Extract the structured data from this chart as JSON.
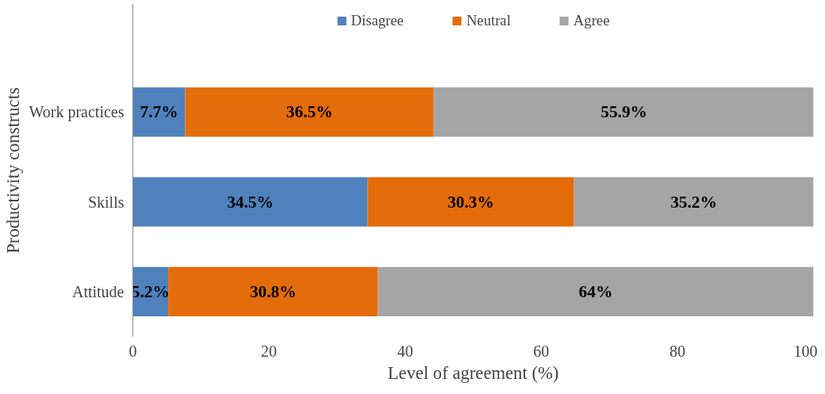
{
  "chart_data": {
    "type": "bar",
    "orientation": "horizontal",
    "stacked": true,
    "xlabel": "Level of agreement (%)",
    "ylabel": "Productivity constructs",
    "categories": [
      "Work practices",
      "Skills",
      "Attitude"
    ],
    "series": [
      {
        "name": "Disagree",
        "color": "#4f81bd",
        "values": [
          7.7,
          34.5,
          5.2
        ],
        "value_labels": [
          "7.7%",
          "34.5%",
          "5.2%"
        ]
      },
      {
        "name": "Neutral",
        "color": "#e46c0a",
        "values": [
          36.5,
          30.3,
          30.8
        ],
        "value_labels": [
          "36.5%",
          "30.3%",
          "30.8%"
        ]
      },
      {
        "name": "Agree",
        "color": "#a5a5a5",
        "values": [
          55.9,
          35.2,
          64
        ],
        "value_labels": [
          "55.9%",
          "35.2%",
          "64%"
        ]
      }
    ],
    "xlim": [
      0,
      100
    ],
    "xticks": [
      0,
      20,
      40,
      60,
      80,
      100
    ],
    "grid": false,
    "legend": "top"
  }
}
